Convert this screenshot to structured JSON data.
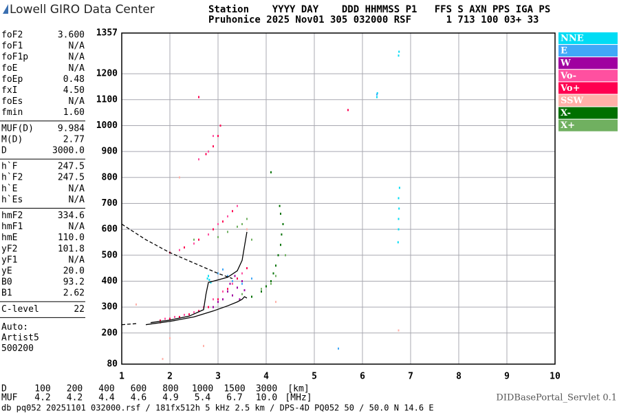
{
  "header": {
    "logo": "Lowell GIRO Data Center",
    "line1": "Station    YYYY DAY    DDD HHMMSS P1   FFS S AXN PPS IGA PS",
    "line2": "Pruhonice 2025 Nov01 305 032000 RSF      1 713 100 03+ 33"
  },
  "parameters": [
    [
      [
        "foF2",
        "3.600"
      ],
      [
        "foF1",
        "N/A"
      ],
      [
        "foF1p",
        "N/A"
      ],
      [
        "foE",
        "N/A"
      ],
      [
        "foEp",
        "0.48"
      ],
      [
        "fxI",
        "4.50"
      ],
      [
        "foEs",
        "N/A"
      ],
      [
        "fmin",
        "1.60"
      ]
    ],
    [
      [
        "MUF(D)",
        "9.984"
      ],
      [
        "M(D)",
        "2.77"
      ],
      [
        "D",
        "3000.0"
      ]
    ],
    [
      [
        "h`F",
        "247.5"
      ],
      [
        "h`F2",
        "247.5"
      ],
      [
        "h`E",
        "N/A"
      ],
      [
        "h`Es",
        "N/A"
      ]
    ],
    [
      [
        "hmF2",
        "334.6"
      ],
      [
        "hmF1",
        "N/A"
      ],
      [
        "hmE",
        "110.0"
      ],
      [
        "yF2",
        "101.8"
      ],
      [
        "yF1",
        "N/A"
      ],
      [
        "yE",
        "20.0"
      ],
      [
        "B0",
        "93.2"
      ],
      [
        "B1",
        "2.62"
      ]
    ],
    [
      [
        "C-level",
        "22"
      ]
    ]
  ],
  "auto": [
    "Auto:",
    "Artist5",
    "500200"
  ],
  "chart_data": {
    "type": "scatter",
    "xlim": [
      1,
      10
    ],
    "xticks": [
      1,
      2,
      3,
      4,
      5,
      6,
      7,
      8,
      9,
      10
    ],
    "ylim": [
      80,
      1357
    ],
    "yticks": [
      80,
      200,
      300,
      400,
      500,
      600,
      700,
      800,
      900,
      1000,
      1100,
      1200,
      1357
    ],
    "grid": true,
    "series": [
      {
        "name": "NNE",
        "color": "#00dcf4",
        "x": [
          2.78,
          2.8,
          2.82,
          2.85,
          6.3,
          6.31,
          6.74,
          6.75,
          6.75,
          6.76,
          6.75,
          6.77,
          6.75,
          6.76
        ],
        "y": [
          410,
          420,
          405,
          395,
          1110,
          1125,
          550,
          600,
          640,
          680,
          720,
          760,
          1270,
          1285
        ]
      },
      {
        "name": "E",
        "color": "#40a8f8",
        "x": [
          3.0,
          3.1,
          3.2,
          3.3,
          3.5,
          3.7,
          5.5,
          6.3
        ],
        "y": [
          430,
          445,
          420,
          400,
          390,
          410,
          140,
          1120
        ]
      },
      {
        "name": "W",
        "color": "#a000a0",
        "x": [
          3.1,
          3.2,
          3.25,
          3.3,
          3.35,
          3.4,
          3.45,
          3.5,
          3.55,
          2.9,
          3.0
        ],
        "y": [
          330,
          360,
          390,
          345,
          420,
          375,
          330,
          400,
          365,
          300,
          320
        ]
      },
      {
        "name": "Vo-",
        "color": "#ff50a0",
        "x": [
          1.9,
          2.1,
          2.3,
          2.5,
          2.7,
          2.9,
          3.1,
          3.3,
          3.5,
          2.2,
          2.5,
          2.8,
          3.0,
          3.2,
          3.4,
          2.6,
          2.75,
          2.8,
          2.9
        ],
        "y": [
          255,
          262,
          270,
          280,
          300,
          330,
          360,
          390,
          430,
          520,
          545,
          580,
          620,
          650,
          690,
          870,
          890,
          900,
          960
        ]
      },
      {
        "name": "Vo+",
        "color": "#ff0050",
        "x": [
          1.8,
          2.0,
          2.2,
          2.4,
          2.6,
          2.8,
          3.0,
          3.2,
          3.4,
          3.6,
          2.0,
          2.3,
          2.6,
          2.9,
          3.1,
          3.3,
          2.75,
          2.9,
          3.0,
          3.05,
          2.6,
          5.7
        ],
        "y": [
          248,
          255,
          262,
          272,
          285,
          300,
          330,
          370,
          410,
          450,
          510,
          530,
          560,
          600,
          630,
          670,
          890,
          920,
          960,
          1000,
          1110,
          1060
        ]
      },
      {
        "name": "SSW",
        "color": "#ffb0a8",
        "x": [
          1.3,
          1.8,
          2.0,
          2.7,
          1.85,
          6.75,
          3.6,
          2.2,
          4.2
        ],
        "y": [
          310,
          240,
          180,
          150,
          100,
          210,
          600,
          800,
          320
        ]
      },
      {
        "name": "X-",
        "color": "#007000",
        "x": [
          4.0,
          4.1,
          4.15,
          4.2,
          4.25,
          4.3,
          4.32,
          4.35,
          4.3,
          4.28,
          4.1,
          3.9,
          3.7
        ],
        "y": [
          380,
          400,
          430,
          460,
          500,
          540,
          580,
          620,
          660,
          690,
          820,
          360,
          340
        ]
      },
      {
        "name": "X+",
        "color": "#70b060",
        "x": [
          3.0,
          3.2,
          3.4,
          3.5,
          3.6,
          2.5,
          3.7,
          4.4,
          4.2,
          4.1,
          3.9,
          3.5
        ],
        "y": [
          570,
          590,
          610,
          620,
          640,
          560,
          560,
          500,
          420,
          390,
          370,
          350
        ]
      }
    ],
    "lines": [
      {
        "style": "solid",
        "color": "#000000",
        "x": [
          1.6,
          2.0,
          2.4,
          2.7,
          2.75,
          2.8,
          3.0,
          3.2,
          3.4,
          3.5,
          3.6
        ],
        "y": [
          240,
          250,
          265,
          290,
          350,
          395,
          405,
          415,
          440,
          480,
          590
        ]
      },
      {
        "style": "solid",
        "color": "#000000",
        "x": [
          1.5,
          2.0,
          2.5,
          2.9,
          3.2,
          3.4,
          3.5,
          3.55,
          3.6
        ],
        "y": [
          232,
          245,
          262,
          285,
          305,
          320,
          330,
          340,
          335
        ]
      },
      {
        "style": "dashed",
        "color": "#000000",
        "x": [
          1.0,
          1.5,
          2.0,
          2.5,
          3.0,
          3.3
        ],
        "y": [
          620,
          560,
          510,
          470,
          430,
          410
        ]
      },
      {
        "style": "dashed",
        "color": "#000000",
        "x": [
          1.0,
          1.3
        ],
        "y": [
          232,
          236
        ]
      }
    ]
  },
  "scale": {
    "d_label": "D",
    "d_values": [
      "100",
      "200",
      "400",
      "600",
      "800",
      "1000",
      "1500",
      "3000",
      "[km]"
    ],
    "muf_label": "MUF",
    "muf_values": [
      "4.2",
      "4.2",
      "4.4",
      "4.6",
      "4.9",
      "5.4",
      "6.7",
      "10.0",
      "[MHz]"
    ]
  },
  "servlet": "DIDBasePortal_Servlet 0.1",
  "footer": "db pq052 20251101 032000.rsf / 181fx512h 5 kHz 2.5 km / DPS-4D PQ052 50 / 50.0 N 14.6 E"
}
